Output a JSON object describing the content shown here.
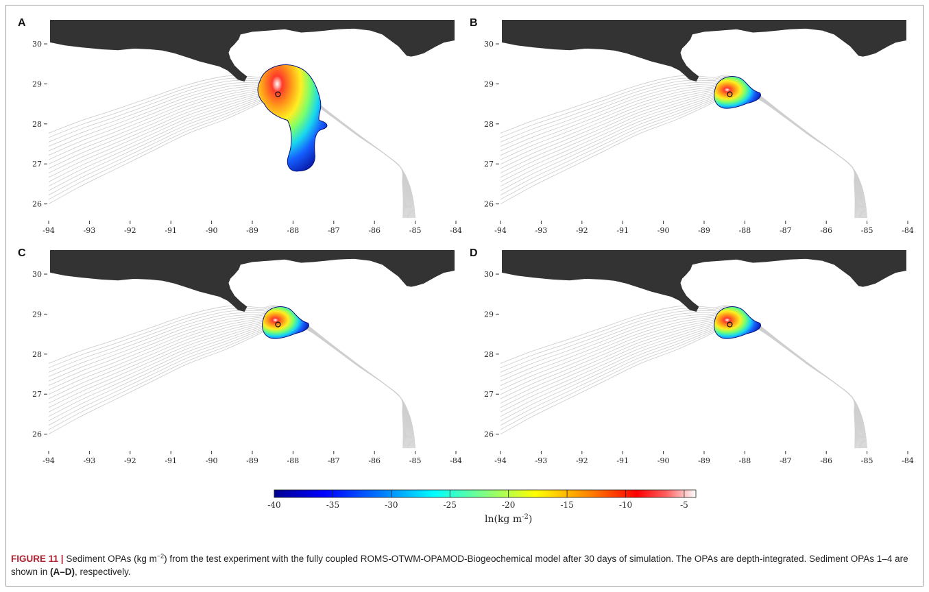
{
  "figure": {
    "panels": [
      {
        "letter": "A",
        "spread": "large"
      },
      {
        "letter": "B",
        "spread": "small"
      },
      {
        "letter": "C",
        "spread": "small"
      },
      {
        "letter": "D",
        "spread": "small"
      }
    ],
    "x_ticks": [
      "-94",
      "-93",
      "-92",
      "-91",
      "-90",
      "-89",
      "-88",
      "-87",
      "-86",
      "-85",
      "-84"
    ],
    "y_ticks": [
      "30",
      "29",
      "28",
      "27",
      "26"
    ],
    "xlim": [
      -94,
      -84
    ],
    "ylim": [
      25.6,
      30.6
    ],
    "release_site": {
      "lon": -88.37,
      "lat": 28.74
    },
    "colors": {
      "land": "#333333",
      "contour": "#cfcfcf",
      "frame": "#9a9a9a"
    },
    "colorbar": {
      "ticks": [
        "-40",
        "-35",
        "-30",
        "-25",
        "-20",
        "-15",
        "-10",
        "-5"
      ],
      "range": [
        -40,
        -4
      ],
      "label": "ln(kg m",
      "label_sup": "-2",
      "label_end": ")",
      "colormap": "jet-to-white"
    },
    "caption": {
      "label": "FIGURE 11 |",
      "text1": " Sediment OPAs (kg m",
      "sup": "−2",
      "text2": ") from the test experiment with the fully coupled ROMS-OTWM-OPAMOD-Biogeochemical model after 30 days of simulation. The OPAs are depth-integrated. Sediment OPAs 1–4 are shown in ",
      "bold": "(A–D)",
      "text3": ", respectively."
    }
  }
}
